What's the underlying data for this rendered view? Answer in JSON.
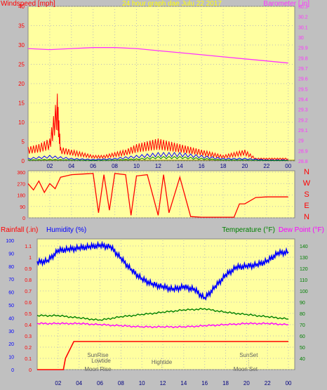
{
  "chart_data": [
    {
      "type": "line",
      "title": "24 hour graph dae   Julu 22 2017",
      "ylabel_left": "Windspeed [mph]",
      "ylabel_right": "Barometer [.in]",
      "x_tick_labels": [
        "02",
        "04",
        "06",
        "08",
        "10",
        "12",
        "14",
        "16",
        "18",
        "20",
        "22",
        "00"
      ],
      "left_axis": {
        "ylim": [
          0,
          40
        ],
        "ticks": [
          "0",
          "5",
          "10",
          "15",
          "20",
          "25",
          "30",
          "35",
          "40"
        ]
      },
      "right_axis": {
        "ylim": [
          28.8,
          30.3
        ],
        "ticks": [
          "28.8",
          "28.9",
          "29",
          "29.1",
          "29.2",
          "29.3",
          "29.4",
          "29.5",
          "29.6",
          "29.7",
          "29.8",
          "29.9",
          "30",
          "30.1",
          "30.2",
          "30.3"
        ]
      },
      "series": [
        {
          "name": "Barometer",
          "axis": "right",
          "color": "#ff33ff",
          "x": [
            0,
            2,
            4,
            6,
            8,
            10,
            12,
            14,
            16,
            18,
            20,
            22,
            24
          ],
          "values": [
            29.89,
            29.88,
            29.89,
            29.9,
            29.9,
            29.89,
            29.87,
            29.85,
            29.83,
            29.81,
            29.79,
            29.77,
            29.75
          ]
        },
        {
          "name": "Wind gust",
          "axis": "left",
          "color": "#ff0000",
          "x": [
            0,
            1,
            2,
            2.7,
            3,
            4,
            5,
            6,
            7,
            8,
            9,
            10,
            11,
            12,
            13,
            14,
            15,
            16,
            17,
            18,
            19,
            20,
            21,
            22,
            23,
            24
          ],
          "values": [
            2.5,
            3,
            4,
            12,
            2.5,
            2,
            1.5,
            1,
            1,
            1.5,
            2,
            3,
            3.5,
            4,
            3.5,
            3,
            2.5,
            2,
            1.5,
            1,
            1.5,
            2,
            0.5,
            0.5,
            0.5,
            0.5
          ]
        },
        {
          "name": "Wind average",
          "axis": "left",
          "color": "#0000ff",
          "x": [
            0,
            2,
            4,
            6,
            8,
            10,
            12,
            14,
            16,
            18,
            20,
            22,
            24
          ],
          "values": [
            0.5,
            1,
            0.5,
            0.3,
            0.5,
            1,
            1.5,
            1.5,
            1,
            0.5,
            0.5,
            0.2,
            0.2
          ]
        },
        {
          "name": "Wind low",
          "axis": "left",
          "color": "#008000",
          "x": [
            0,
            2,
            4,
            6,
            8,
            10,
            12,
            14,
            16,
            18,
            20,
            22,
            24
          ],
          "values": [
            0.2,
            0.3,
            0.2,
            0.1,
            0.2,
            0.4,
            0.8,
            0.8,
            0.5,
            0.2,
            0.2,
            0.1,
            0.1
          ]
        }
      ]
    },
    {
      "type": "line",
      "ylabel_right_letters": [
        "N",
        "W",
        "S",
        "E",
        "N"
      ],
      "ylim": [
        0,
        360
      ],
      "ticks": [
        "0",
        "90",
        "180",
        "270",
        "360"
      ],
      "series": [
        {
          "name": "Wind direction",
          "color": "#ff0000",
          "x": [
            0,
            0.5,
            1,
            1.5,
            2,
            2.5,
            3,
            3.5,
            4,
            5,
            6,
            6.5,
            7,
            7.5,
            8,
            9,
            9.5,
            10,
            11,
            12,
            12.5,
            13,
            14,
            15,
            16,
            17,
            18,
            19,
            19.5,
            20,
            21,
            22,
            23,
            24
          ],
          "values": [
            270,
            220,
            290,
            200,
            270,
            230,
            320,
            330,
            340,
            345,
            350,
            40,
            340,
            60,
            350,
            340,
            20,
            330,
            340,
            20,
            340,
            40,
            320,
            10,
            5,
            5,
            5,
            5,
            110,
            110,
            160,
            165,
            165,
            165
          ]
        }
      ]
    },
    {
      "type": "line",
      "ylabel_left_1": "Rainfall (.in)",
      "ylabel_left_2": "Humidity (%)",
      "ylabel_right_1": "Temperature (°F)",
      "ylabel_right_2": "Dew Point (°F)",
      "rain_axis": {
        "ylim": [
          0,
          1.15
        ],
        "ticks": [
          "0",
          "0.1",
          "0.2",
          "0.3",
          "0.4",
          "0.5",
          "0.6",
          "0.7",
          "0.8",
          "0.9",
          "1",
          "1.1"
        ]
      },
      "humidity_axis": {
        "ylim": [
          0,
          100
        ],
        "ticks": [
          "0",
          "10",
          "20",
          "30",
          "40",
          "50",
          "60",
          "70",
          "80",
          "90",
          "100"
        ]
      },
      "temp_axis": {
        "ylim": [
          30,
          145
        ],
        "ticks": [
          "40",
          "50",
          "60",
          "70",
          "80",
          "90",
          "100",
          "110",
          "120",
          "130",
          "140"
        ]
      },
      "annotations": [
        "SunRise",
        "Lowtide",
        "Moon Rise",
        "Hightide",
        "SunSet",
        "Moon Set"
      ],
      "series": [
        {
          "name": "Humidity",
          "color": "#0000ff",
          "axis": "humidity",
          "x": [
            0,
            1,
            2,
            3,
            4,
            5,
            6,
            7,
            8,
            9,
            10,
            11,
            12,
            13,
            14,
            15,
            16,
            17,
            18,
            19,
            20,
            21,
            22,
            23,
            24
          ],
          "values": [
            83,
            84,
            92,
            93,
            94,
            95,
            96,
            95,
            86,
            77,
            70,
            66,
            64,
            62,
            64,
            62,
            55,
            64,
            73,
            79,
            80,
            81,
            84,
            90,
            91
          ]
        },
        {
          "name": "Temperature",
          "color": "#008000",
          "axis": "temp",
          "x": [
            0,
            2,
            4,
            6,
            8,
            10,
            12,
            14,
            16,
            18,
            20,
            22,
            24
          ],
          "values": [
            78,
            78,
            76,
            74,
            77,
            79,
            81,
            83,
            84,
            81,
            79,
            77,
            75
          ]
        },
        {
          "name": "Dew Point",
          "color": "#ff00ff",
          "axis": "temp",
          "x": [
            0,
            2,
            4,
            6,
            8,
            10,
            12,
            14,
            16,
            18,
            20,
            22,
            24
          ],
          "values": [
            71,
            71,
            71,
            70,
            69,
            68,
            68,
            68,
            69,
            70,
            71,
            71,
            70
          ]
        },
        {
          "name": "Rainfall",
          "color": "#ff0000",
          "axis": "rain",
          "x": [
            0,
            2.5,
            2.7,
            3.5,
            24
          ],
          "values": [
            0,
            0,
            0.1,
            0.25,
            0.25
          ]
        }
      ]
    }
  ]
}
